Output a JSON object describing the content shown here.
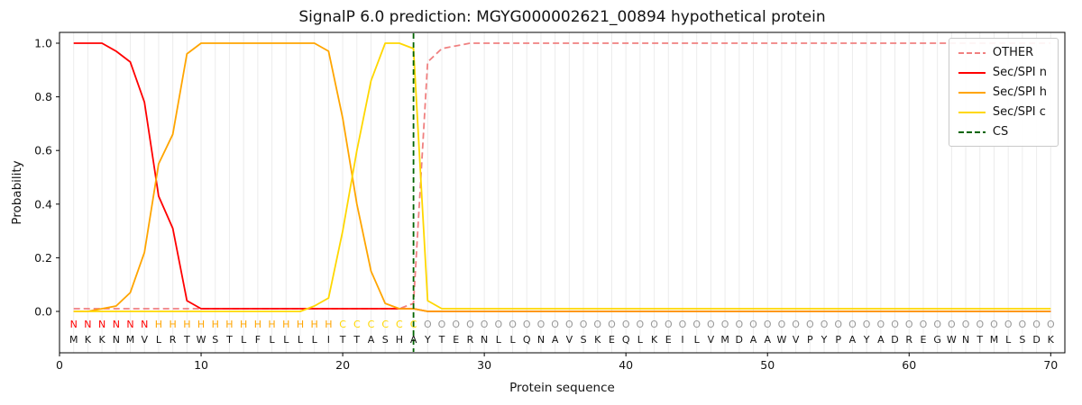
{
  "chart_data": {
    "type": "line",
    "title": "SignalP 6.0 prediction: MGYG000002621_00894 hypothetical protein",
    "xlabel": "Protein sequence",
    "ylabel": "Probability",
    "xlim": [
      0,
      71
    ],
    "ylim": [
      -0.155,
      1.04
    ],
    "xticks": [
      0,
      10,
      20,
      30,
      40,
      50,
      60,
      70
    ],
    "yticks": [
      "0.0",
      "0.2",
      "0.4",
      "0.6",
      "0.8",
      "1.0"
    ],
    "grid": "vertical gridline at every sequence position",
    "legend_position": "upper right",
    "x_range": [
      1,
      70
    ],
    "series": [
      {
        "name": "OTHER",
        "color": "#f08080",
        "dashed": true,
        "values": [
          0.01,
          0.01,
          0.01,
          0.01,
          0.01,
          0.01,
          0.01,
          0.01,
          0.01,
          0.01,
          0.01,
          0.01,
          0.01,
          0.01,
          0.01,
          0.01,
          0.01,
          0.01,
          0.01,
          0.01,
          0.01,
          0.01,
          0.01,
          0.01,
          0.03,
          0.93,
          0.98,
          0.99,
          1.0,
          1.0,
          1.0,
          1.0,
          1.0,
          1.0,
          1.0,
          1.0,
          1.0,
          1.0,
          1.0,
          1.0,
          1.0,
          1.0,
          1.0,
          1.0,
          1.0,
          1.0,
          1.0,
          1.0,
          1.0,
          1.0,
          1.0,
          1.0,
          1.0,
          1.0,
          1.0,
          1.0,
          1.0,
          1.0,
          1.0,
          1.0,
          1.0,
          1.0,
          1.0,
          1.0,
          1.0,
          1.0,
          1.0,
          1.0,
          1.0,
          1.0
        ]
      },
      {
        "name": "Sec/SPI n",
        "color": "#ff0000",
        "dashed": false,
        "values": [
          1.0,
          1.0,
          1.0,
          0.97,
          0.93,
          0.78,
          0.43,
          0.31,
          0.04,
          0.01,
          0.01,
          0.01,
          0.01,
          0.01,
          0.01,
          0.01,
          0.01,
          0.01,
          0.01,
          0.01,
          0.01,
          0.01,
          0.01,
          0.01,
          0.01,
          0.0,
          0.0,
          0.0,
          0.0,
          0.0,
          0.0,
          0.0,
          0.0,
          0.0,
          0.0,
          0.0,
          0.0,
          0.0,
          0.0,
          0.0,
          0.0,
          0.0,
          0.0,
          0.0,
          0.0,
          0.0,
          0.0,
          0.0,
          0.0,
          0.0,
          0.0,
          0.0,
          0.0,
          0.0,
          0.0,
          0.0,
          0.0,
          0.0,
          0.0,
          0.0,
          0.0,
          0.0,
          0.0,
          0.0,
          0.0,
          0.0,
          0.0,
          0.0,
          0.0,
          0.0
        ]
      },
      {
        "name": "Sec/SPI h",
        "color": "#ffa500",
        "dashed": false,
        "values": [
          0.0,
          0.0,
          0.01,
          0.02,
          0.07,
          0.22,
          0.55,
          0.66,
          0.96,
          1.0,
          1.0,
          1.0,
          1.0,
          1.0,
          1.0,
          1.0,
          1.0,
          1.0,
          0.97,
          0.72,
          0.4,
          0.15,
          0.03,
          0.01,
          0.01,
          0.0,
          0.0,
          0.0,
          0.0,
          0.0,
          0.0,
          0.0,
          0.0,
          0.0,
          0.0,
          0.0,
          0.0,
          0.0,
          0.0,
          0.0,
          0.0,
          0.0,
          0.0,
          0.0,
          0.0,
          0.0,
          0.0,
          0.0,
          0.0,
          0.0,
          0.0,
          0.0,
          0.0,
          0.0,
          0.0,
          0.0,
          0.0,
          0.0,
          0.0,
          0.0,
          0.0,
          0.0,
          0.0,
          0.0,
          0.0,
          0.0,
          0.0,
          0.0,
          0.0,
          0.0
        ]
      },
      {
        "name": "Sec/SPI c",
        "color": "#ffd700",
        "dashed": false,
        "values": [
          0.0,
          0.0,
          0.0,
          0.0,
          0.0,
          0.0,
          0.0,
          0.0,
          0.0,
          0.0,
          0.0,
          0.0,
          0.0,
          0.0,
          0.0,
          0.0,
          0.0,
          0.02,
          0.05,
          0.3,
          0.6,
          0.86,
          1.0,
          1.0,
          0.98,
          0.04,
          0.01,
          0.01,
          0.01,
          0.01,
          0.01,
          0.01,
          0.01,
          0.01,
          0.01,
          0.01,
          0.01,
          0.01,
          0.01,
          0.01,
          0.01,
          0.01,
          0.01,
          0.01,
          0.01,
          0.01,
          0.01,
          0.01,
          0.01,
          0.01,
          0.01,
          0.01,
          0.01,
          0.01,
          0.01,
          0.01,
          0.01,
          0.01,
          0.01,
          0.01,
          0.01,
          0.01,
          0.01,
          0.01,
          0.01,
          0.01,
          0.01,
          0.01,
          0.01,
          0.01
        ]
      }
    ],
    "cs_marker": {
      "label": "CS",
      "x": 25,
      "color": "#006400",
      "dashed": true
    },
    "sequence": "MKKNMVLRTWSTLFLLLLITTASHAYTERNLLQNAVSKEQLKEILVMDAAWVPYPAYADREGWNTMLSDK",
    "region_labels": "NNNNNNHHHHHHHHHHHHHCCCCCCOOOOOOOOOOOOOOOOOOOOOOOOOOOOOOOOOOOOOOOOOOOOO",
    "region_colors": {
      "N": "#ff0000",
      "H": "#ffa500",
      "C": "#ffd700",
      "O": "#999999"
    }
  },
  "legend": {
    "items": [
      "OTHER",
      "Sec/SPI n",
      "Sec/SPI h",
      "Sec/SPI c",
      "CS"
    ]
  }
}
